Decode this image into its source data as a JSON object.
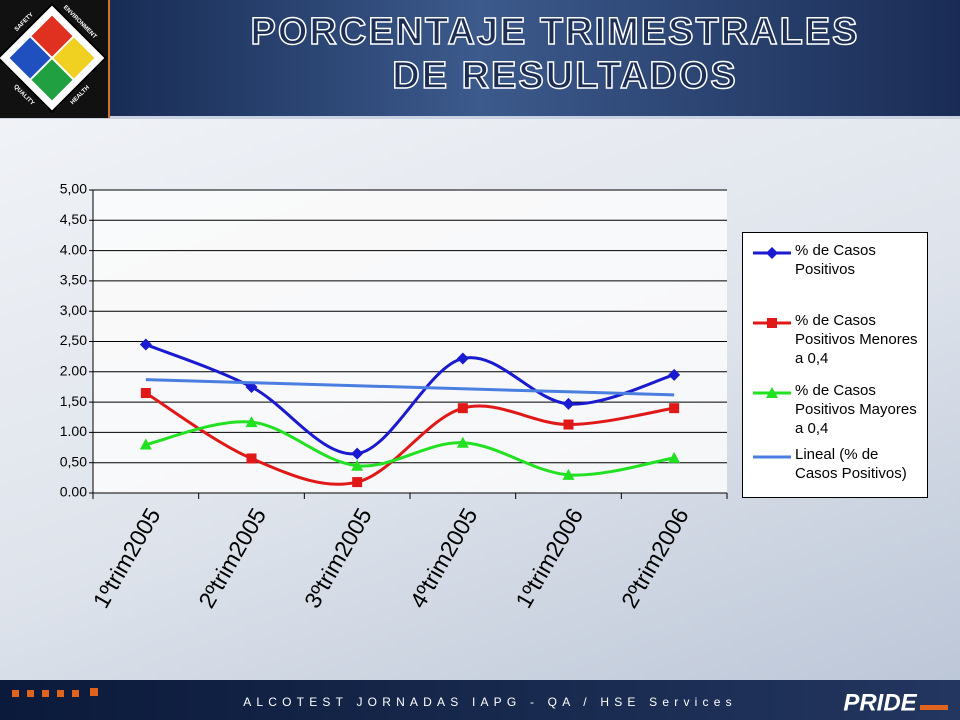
{
  "header": {
    "title_lines": [
      "PORCENTAJE TRIMESTRALES",
      "DE RESULTADOS"
    ],
    "badge": [
      "SAFETY",
      "ENVIRONMENT",
      "QUALITY",
      "HEALTH"
    ]
  },
  "footer": {
    "text": "ALCOTEST JORNADAS IAPG - QA / HSE Services",
    "logo": "PRIDE"
  },
  "chart_data": {
    "type": "line",
    "smooth": true,
    "legend": "right",
    "grid": true,
    "categories": [
      "1ºtrim2005",
      "2ºtrim2005",
      "3ºtrim2005",
      "4ºtrim2005",
      "1ºtrim2006",
      "2ºtrim2006"
    ],
    "series": [
      {
        "name": "% de Casos Positivos",
        "color": "#1a1ad0",
        "marker": "diamond",
        "values": [
          2.45,
          1.75,
          0.65,
          2.22,
          1.47,
          1.95
        ]
      },
      {
        "name": "% de Casos Positivos Menores a 0,4",
        "color": "#e01818",
        "marker": "square",
        "values": [
          1.65,
          0.57,
          0.18,
          1.4,
          1.13,
          1.4
        ]
      },
      {
        "name": "% de Casos Positivos Mayores a 0,4",
        "color": "#22e022",
        "marker": "triangle",
        "values": [
          0.8,
          1.17,
          0.45,
          0.83,
          0.3,
          0.58
        ]
      },
      {
        "name": "Lineal (% de Casos Positivos)",
        "color": "#4a7ee0",
        "marker": "none",
        "trendline": true,
        "values": [
          1.87,
          1.82,
          1.77,
          1.72,
          1.67,
          1.62
        ]
      }
    ],
    "ylim": [
      0,
      5
    ],
    "yticks": [
      {
        "value": 0,
        "label": "0.00"
      },
      {
        "value": 0.5,
        "label": "0,50"
      },
      {
        "value": 1,
        "label": "1.00"
      },
      {
        "value": 1.5,
        "label": "1,50"
      },
      {
        "value": 2,
        "label": "2.00"
      },
      {
        "value": 2.5,
        "label": "2,50"
      },
      {
        "value": 3,
        "label": "3,00"
      },
      {
        "value": 3.5,
        "label": "3,50"
      },
      {
        "value": 4,
        "label": "4.00"
      },
      {
        "value": 4.5,
        "label": "4,50"
      },
      {
        "value": 5,
        "label": "5,00"
      }
    ]
  }
}
